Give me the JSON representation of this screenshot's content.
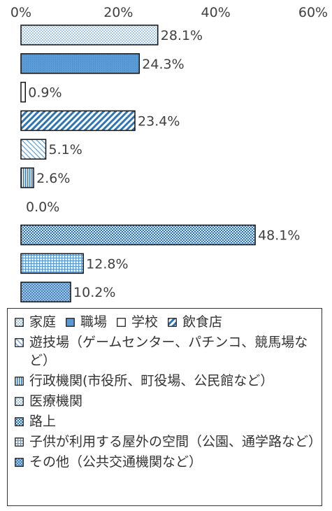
{
  "chart_data": {
    "type": "bar",
    "orientation": "horizontal",
    "xlim": [
      0,
      60
    ],
    "x_ticks": [
      "0%",
      "20%",
      "40%",
      "60%"
    ],
    "grid": false,
    "legend_position": "bottom",
    "categories": [
      "家庭",
      "職場",
      "学校",
      "飲食店",
      "遊技場（ゲームセンター、パチンコ、競馬場など）",
      "行政機関（市役所、町役場、公民館など）",
      "医療機関",
      "路上",
      "子供が利用する屋外の空間（公園、通学路など）",
      "その他（公共交通機関など）"
    ],
    "values": [
      28.1,
      24.3,
      0.9,
      23.4,
      5.1,
      2.6,
      0.0,
      48.1,
      12.8,
      10.2
    ],
    "value_labels": [
      "28.1%",
      "24.3%",
      "0.9%",
      "23.4%",
      "5.1%",
      "2.6%",
      "0.0%",
      "48.1%",
      "12.8%",
      "10.2%"
    ],
    "patterns": [
      "dots-blue",
      "solid-blue",
      "plain-white",
      "diag-thick",
      "diag-light",
      "vertical-lines",
      "checker-light",
      "checker-dense",
      "grid-blue",
      "cross-hatch"
    ]
  },
  "legend": {
    "items": [
      [
        {
          "label": "家庭",
          "pattern": "dots-blue"
        },
        {
          "label": "職場",
          "pattern": "solid-blue"
        },
        {
          "label": "学校",
          "pattern": "plain-white"
        },
        {
          "label": "飲食店",
          "pattern": "diag-thick"
        }
      ],
      [
        {
          "label": "遊技場（ゲームセンター、パチンコ、競馬場など）",
          "pattern": "diag-light"
        }
      ],
      [
        {
          "label": "行政機関(市役所、町役場、公民館など）",
          "pattern": "vertical-lines"
        }
      ],
      [
        {
          "label": "医療機関",
          "pattern": "checker-light"
        }
      ],
      [
        {
          "label": "路上",
          "pattern": "checker-dense"
        }
      ],
      [
        {
          "label": "子供が利用する屋外の空間（公園、通学路など）",
          "pattern": "grid-blue"
        }
      ],
      [
        {
          "label": "その他（公共交通機関など）",
          "pattern": "cross-hatch"
        }
      ]
    ]
  },
  "colors": {
    "accent": "#5b9bd5",
    "dark": "#1f3864",
    "axis": "#bfbfbf",
    "text": "#404040"
  }
}
